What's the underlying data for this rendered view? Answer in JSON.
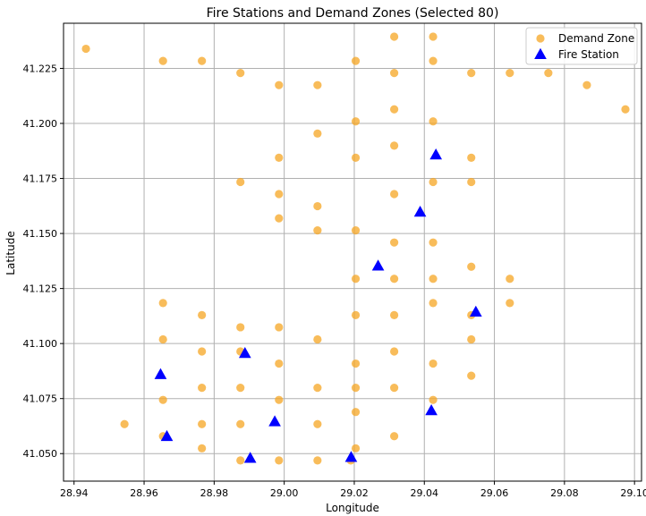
{
  "chart_data": {
    "type": "scatter",
    "title": "Fire Stations and Demand Zones (Selected 80)",
    "xlabel": "Longitude",
    "ylabel": "Latitude",
    "xlim": [
      28.937,
      29.102
    ],
    "ylim": [
      41.0375,
      41.2455
    ],
    "xticks": [
      28.94,
      28.96,
      28.98,
      29.0,
      29.02,
      29.04,
      29.06,
      29.08,
      29.1
    ],
    "xtick_labels": [
      "28.94",
      "28.96",
      "28.98",
      "29.00",
      "29.02",
      "29.04",
      "29.06",
      "29.08",
      "29.10"
    ],
    "yticks": [
      41.05,
      41.075,
      41.1,
      41.125,
      41.15,
      41.175,
      41.2,
      41.225
    ],
    "ytick_labels": [
      "41.050",
      "41.075",
      "41.100",
      "41.125",
      "41.150",
      "41.175",
      "41.200",
      "41.225"
    ],
    "grid": true,
    "legend": "top-right",
    "series": [
      {
        "name": "Demand Zone",
        "marker": "circle",
        "color": "#f5a623",
        "points": [
          [
            29.0314,
            41.2394
          ],
          [
            29.0425,
            41.2394
          ],
          [
            28.9434,
            41.2339
          ],
          [
            28.9654,
            41.2284
          ],
          [
            28.9765,
            41.2284
          ],
          [
            29.0204,
            41.2284
          ],
          [
            29.0425,
            41.2284
          ],
          [
            28.9875,
            41.2229
          ],
          [
            29.0314,
            41.2229
          ],
          [
            29.0534,
            41.2229
          ],
          [
            29.0644,
            41.2229
          ],
          [
            29.0754,
            41.2229
          ],
          [
            28.9985,
            41.2174
          ],
          [
            29.0095,
            41.2174
          ],
          [
            29.0864,
            41.2174
          ],
          [
            29.0314,
            41.2064
          ],
          [
            29.0974,
            41.2064
          ],
          [
            29.0204,
            41.2009
          ],
          [
            29.0425,
            41.2009
          ],
          [
            29.0095,
            41.1954
          ],
          [
            29.0314,
            41.1899
          ],
          [
            28.9985,
            41.1844
          ],
          [
            29.0204,
            41.1844
          ],
          [
            29.0534,
            41.1844
          ],
          [
            28.9875,
            41.1734
          ],
          [
            29.0425,
            41.1734
          ],
          [
            29.0534,
            41.1734
          ],
          [
            28.9985,
            41.1679
          ],
          [
            29.0314,
            41.1679
          ],
          [
            29.0095,
            41.1624
          ],
          [
            28.9985,
            41.1569
          ],
          [
            29.0095,
            41.1514
          ],
          [
            29.0204,
            41.1514
          ],
          [
            29.0314,
            41.1459
          ],
          [
            29.0425,
            41.1459
          ],
          [
            29.0534,
            41.1349
          ],
          [
            29.0204,
            41.1294
          ],
          [
            29.0314,
            41.1294
          ],
          [
            29.0425,
            41.1294
          ],
          [
            29.0644,
            41.1294
          ],
          [
            28.9654,
            41.1184
          ],
          [
            29.0425,
            41.1184
          ],
          [
            29.0644,
            41.1184
          ],
          [
            28.9765,
            41.1129
          ],
          [
            29.0204,
            41.1129
          ],
          [
            29.0314,
            41.1129
          ],
          [
            29.0534,
            41.1129
          ],
          [
            28.9875,
            41.1074
          ],
          [
            28.9985,
            41.1074
          ],
          [
            28.9654,
            41.1019
          ],
          [
            29.0095,
            41.1019
          ],
          [
            29.0534,
            41.1019
          ],
          [
            28.9765,
            41.0964
          ],
          [
            28.9875,
            41.0964
          ],
          [
            29.0314,
            41.0964
          ],
          [
            28.9985,
            41.0909
          ],
          [
            29.0204,
            41.0909
          ],
          [
            29.0425,
            41.0909
          ],
          [
            29.0534,
            41.0854
          ],
          [
            28.9765,
            41.0799
          ],
          [
            28.9875,
            41.0799
          ],
          [
            29.0095,
            41.0799
          ],
          [
            29.0204,
            41.0799
          ],
          [
            29.0314,
            41.0799
          ],
          [
            28.9654,
            41.0744
          ],
          [
            28.9985,
            41.0744
          ],
          [
            29.0425,
            41.0744
          ],
          [
            29.0204,
            41.0689
          ],
          [
            28.9544,
            41.0634
          ],
          [
            28.9765,
            41.0634
          ],
          [
            28.9875,
            41.0634
          ],
          [
            29.0095,
            41.0634
          ],
          [
            28.9654,
            41.0579
          ],
          [
            29.0314,
            41.0579
          ],
          [
            28.9765,
            41.0524
          ],
          [
            29.0204,
            41.0524
          ],
          [
            28.9875,
            41.0469
          ],
          [
            28.9985,
            41.0469
          ],
          [
            29.0095,
            41.0469
          ],
          [
            29.019,
            41.0469
          ]
        ]
      },
      {
        "name": "Fire Station",
        "marker": "triangle",
        "color": "#0000ff",
        "points": [
          [
            29.0433,
            41.1857
          ],
          [
            29.0388,
            41.1597
          ],
          [
            29.0268,
            41.1352
          ],
          [
            29.0547,
            41.1143
          ],
          [
            28.9888,
            41.0955
          ],
          [
            28.9647,
            41.0859
          ],
          [
            29.042,
            41.0695
          ],
          [
            28.9973,
            41.0645
          ],
          [
            28.9665,
            41.0578
          ],
          [
            28.9903,
            41.0479
          ],
          [
            29.0191,
            41.0483
          ]
        ]
      }
    ]
  }
}
